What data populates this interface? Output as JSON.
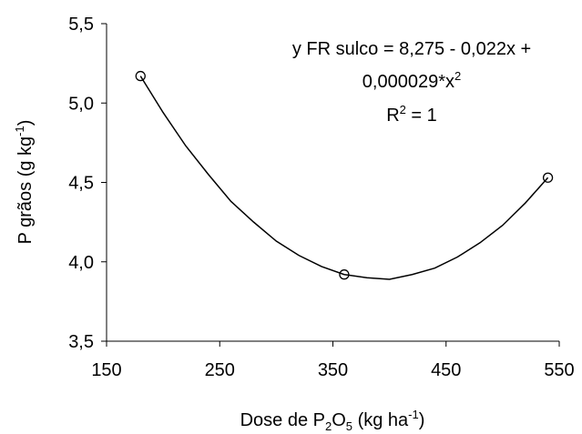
{
  "chart_data": {
    "type": "scatter",
    "annotation": [
      "y FR sulco = 8,275 - 0,022x +",
      "0,000029*x",
      "2",
      "R",
      "2",
      " = 1"
    ],
    "x_label": [
      "Dose de P",
      "2",
      "O",
      "5",
      " (kg ha",
      "-1",
      ")"
    ],
    "y_label": [
      "P grãos (g kg",
      "-1",
      ")"
    ],
    "points": {
      "x": [
        180,
        360,
        540
      ],
      "values": [
        5.17,
        3.92,
        4.53
      ]
    },
    "curve": {
      "x": [
        180,
        200,
        220,
        240,
        260,
        280,
        300,
        320,
        340,
        360,
        380,
        400,
        420,
        440,
        460,
        480,
        500,
        520,
        540
      ],
      "values": [
        5.17,
        4.94,
        4.73,
        4.55,
        4.38,
        4.25,
        4.13,
        4.04,
        3.97,
        3.92,
        3.9,
        3.89,
        3.92,
        3.96,
        4.03,
        4.12,
        4.23,
        4.37,
        4.53
      ]
    },
    "color": "#000000",
    "xlim": [
      150,
      550
    ],
    "xticks": [
      150,
      250,
      350,
      450,
      550
    ],
    "ylim": [
      3.5,
      5.5
    ],
    "yticks": [
      {
        "value": 3.5,
        "label": "3,5"
      },
      {
        "value": 4.0,
        "label": "4,0"
      },
      {
        "value": 4.5,
        "label": "4,5"
      },
      {
        "value": 5.0,
        "label": "5,0"
      },
      {
        "value": 5.5,
        "label": "5,5"
      }
    ],
    "grid": false
  }
}
